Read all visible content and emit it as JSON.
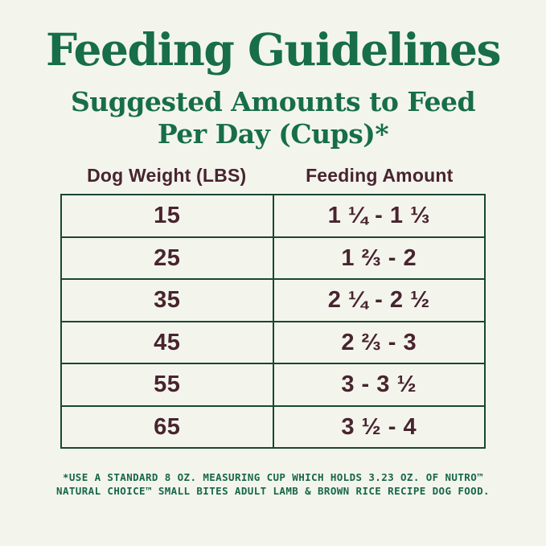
{
  "page": {
    "title": "Feeding Guidelines",
    "subtitle_line1": "Suggested Amounts to Feed",
    "subtitle_line2": "Per Day (Cups)*"
  },
  "table": {
    "columns": [
      "Dog Weight (LBS)",
      "Feeding Amount"
    ],
    "rows": [
      {
        "weight": "15",
        "amount": "1 ¼ - 1 ⅓"
      },
      {
        "weight": "25",
        "amount": "1 ⅔ - 2"
      },
      {
        "weight": "35",
        "amount": "2 ¼ - 2 ½"
      },
      {
        "weight": "45",
        "amount": "2 ⅔ - 3"
      },
      {
        "weight": "55",
        "amount": "3 - 3 ½"
      },
      {
        "weight": "65",
        "amount": "3 ½ - 4"
      }
    ]
  },
  "footnote": {
    "line1": "*USE A STANDARD 8 OZ. MEASURING CUP WHICH HOLDS 3.23 OZ. OF NUTRO™",
    "line2": "NATURAL CHOICE™ SMALL BITES ADULT LAMB & BROWN RICE RECIPE DOG FOOD."
  },
  "colors": {
    "background": "#f3f5ed",
    "heading_green": "#176e48",
    "table_border_green": "#1a4634",
    "table_text_maroon": "#48242f",
    "footnote_green": "#186649"
  }
}
